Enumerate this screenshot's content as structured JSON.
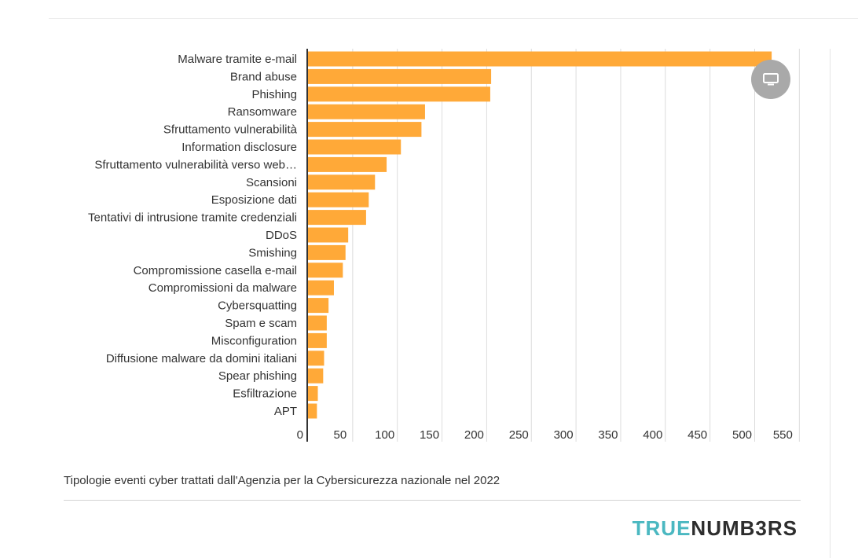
{
  "chart_data": {
    "type": "bar",
    "orientation": "horizontal",
    "categories": [
      "Malware tramite e-mail",
      "Brand abuse",
      "Phishing",
      "Ransomware",
      "Sfruttamento vulnerabilità",
      "Information disclosure",
      "Sfruttamento vulnerabilità verso web…",
      "Scansioni",
      "Esposizione dati",
      "Tentativi di intrusione tramite credenziali",
      "DDoS",
      "Smishing",
      "Compromissione casella e-mail",
      "Compromissioni da malware",
      "Cybersquatting",
      "Spam e scam",
      "Misconfiguration",
      "Diffusione malware da domini italiani",
      "Spear phishing",
      "Esfiltrazione",
      "APT"
    ],
    "values": [
      519,
      205,
      204,
      131,
      127,
      104,
      88,
      75,
      68,
      65,
      45,
      42,
      39,
      29,
      23,
      21,
      21,
      18,
      17,
      11,
      10
    ],
    "xlim": [
      0,
      550
    ],
    "ticks": [
      "0",
      "50",
      "100",
      "150",
      "200",
      "250",
      "300",
      "350",
      "400",
      "450",
      "500",
      "550"
    ],
    "bar_color": "#ffa938",
    "grid": true
  },
  "caption": "Tipologie eventi cyber trattati dall'Agenzia per la Cybersicurezza nazionale nel 2022",
  "brand": {
    "part1": "TRUE",
    "part2": "NUMB3RS"
  },
  "present_icon": "monitor-icon"
}
